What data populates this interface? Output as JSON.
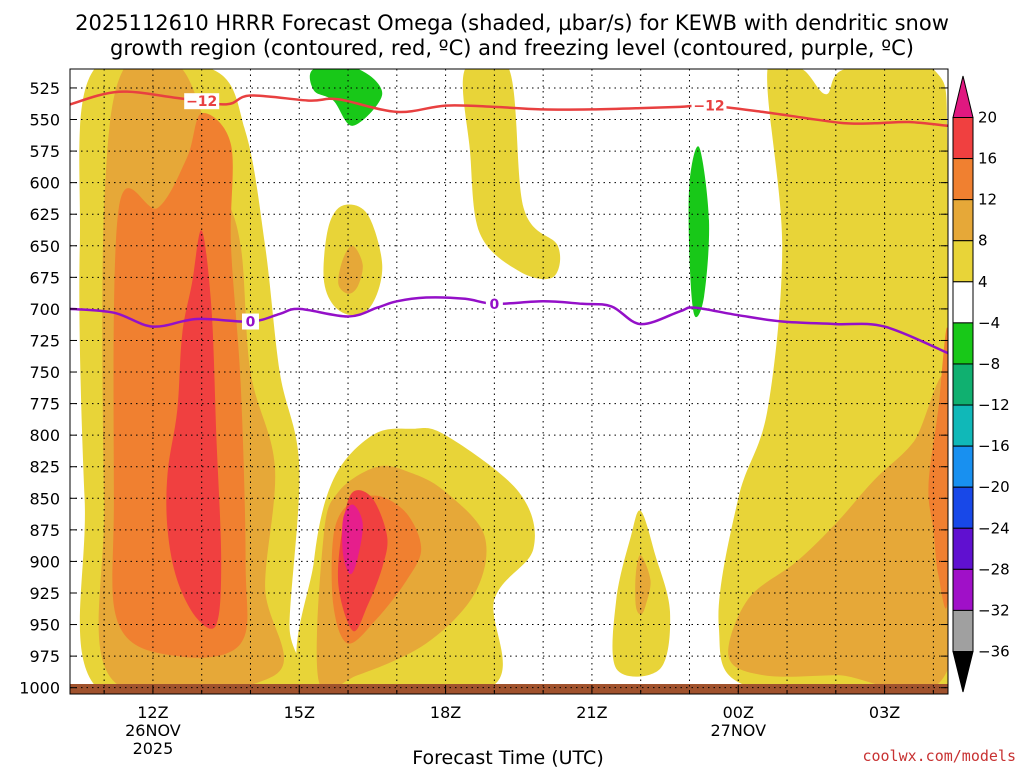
{
  "chart_data": {
    "type": "heatmap",
    "title_line1": "2025112610 HRRR Forecast Omega (shaded, µbar/s) for KEWB with dendritic snow",
    "title_line2": "growth region (contoured, red, ºC) and freezing level (contoured, purple, ºC)",
    "xlabel": "Forecast Time (UTC)",
    "credit": "coolwx.com/models",
    "x_range_hours": [
      10.3,
      28.3
    ],
    "y_range_mb": [
      1005,
      510
    ],
    "y_ticks": [
      {
        "label": "525",
        "p": 525
      },
      {
        "label": "550",
        "p": 550
      },
      {
        "label": "575",
        "p": 575
      },
      {
        "label": "600",
        "p": 600
      },
      {
        "label": "625",
        "p": 625
      },
      {
        "label": "650",
        "p": 650
      },
      {
        "label": "675",
        "p": 675
      },
      {
        "label": "700",
        "p": 700
      },
      {
        "label": "725",
        "p": 725
      },
      {
        "label": "750",
        "p": 750
      },
      {
        "label": "775",
        "p": 775
      },
      {
        "label": "800",
        "p": 800
      },
      {
        "label": "825",
        "p": 825
      },
      {
        "label": "850",
        "p": 850
      },
      {
        "label": "875",
        "p": 875
      },
      {
        "label": "900",
        "p": 900
      },
      {
        "label": "925",
        "p": 925
      },
      {
        "label": "950",
        "p": 950
      },
      {
        "label": "975",
        "p": 975
      },
      {
        "label": "1000",
        "p": 1000
      }
    ],
    "x_ticks": [
      {
        "label": "12Z",
        "h": 12,
        "sub1": "26NOV",
        "sub2": "2025"
      },
      {
        "label": "15Z",
        "h": 15,
        "sub1": "",
        "sub2": ""
      },
      {
        "label": "18Z",
        "h": 18,
        "sub1": "",
        "sub2": ""
      },
      {
        "label": "21Z",
        "h": 21,
        "sub1": "",
        "sub2": ""
      },
      {
        "label": "00Z",
        "h": 24,
        "sub1": "27NOV",
        "sub2": ""
      },
      {
        "label": "03Z",
        "h": 27,
        "sub1": "",
        "sub2": ""
      }
    ],
    "colorbar": {
      "labels": [
        "20",
        "16",
        "12",
        "8",
        "4",
        "−4",
        "−8",
        "−12",
        "−16",
        "−20",
        "−24",
        "−28",
        "−32",
        "−36"
      ],
      "colors": [
        "#f04040",
        "#f08030",
        "#e6a838",
        "#e8d438",
        "#ffffff",
        "#18c818",
        "#10b070",
        "#10b8b8",
        "#1890f0",
        "#1848e8",
        "#6010d0",
        "#a010c8",
        "#a0a0a0"
      ],
      "top_color": "#e01880",
      "bottom_color": "#000000"
    },
    "shading_colors": {
      "omega_4_8": "#e8d438",
      "omega_8_12": "#e6a838",
      "omega_12_16": "#f08030",
      "omega_16_20": "#f04040",
      "omega_gt_20": "#e61e8c",
      "omega_m4_m8": "#18c818",
      "ground": "#a0522d"
    },
    "dgz_contour": {
      "name": "-12°C (dendritic growth zone)",
      "label": "−12",
      "color": "#e84040",
      "label_hours": [
        13.0,
        23.4
      ],
      "points_hours_mb": [
        [
          10.3,
          538
        ],
        [
          11.3,
          528
        ],
        [
          12.5,
          533
        ],
        [
          13.5,
          538
        ],
        [
          14.0,
          531
        ],
        [
          15.2,
          535
        ],
        [
          15.8,
          534
        ],
        [
          17.0,
          544
        ],
        [
          18.0,
          539
        ],
        [
          19.0,
          540
        ],
        [
          20.0,
          542
        ],
        [
          21.0,
          542
        ],
        [
          22.0,
          541
        ],
        [
          22.8,
          540
        ],
        [
          23.4,
          539
        ],
        [
          24.5,
          544
        ],
        [
          25.4,
          549
        ],
        [
          26.2,
          553
        ],
        [
          26.8,
          553
        ],
        [
          27.5,
          552
        ],
        [
          28.3,
          555
        ]
      ]
    },
    "freezing_contour": {
      "name": "0°C (freezing level)",
      "label": "0",
      "color": "#9410c8",
      "label_hours": [
        14.0,
        19.0
      ],
      "points_hours_mb": [
        [
          10.3,
          700
        ],
        [
          11.2,
          703
        ],
        [
          12.0,
          714
        ],
        [
          12.9,
          708
        ],
        [
          14.0,
          710
        ],
        [
          14.6,
          704
        ],
        [
          15.0,
          700
        ],
        [
          16.0,
          706
        ],
        [
          16.6,
          699
        ],
        [
          17.0,
          694
        ],
        [
          17.6,
          691
        ],
        [
          18.4,
          692
        ],
        [
          19.0,
          696
        ],
        [
          20.0,
          694
        ],
        [
          20.8,
          696
        ],
        [
          21.4,
          698
        ],
        [
          22.0,
          712
        ],
        [
          22.8,
          702
        ],
        [
          23.1,
          699
        ],
        [
          24.0,
          705
        ],
        [
          24.9,
          710
        ],
        [
          26.0,
          712
        ],
        [
          27.0,
          714
        ],
        [
          28.3,
          735
        ]
      ]
    },
    "omega_regions": [
      {
        "level": "4-8",
        "color": "#e8d438",
        "poly": [
          [
            10.9,
            1002
          ],
          [
            10.6,
            850
          ],
          [
            10.5,
            650
          ],
          [
            10.8,
            510
          ],
          [
            13.2,
            510
          ],
          [
            13.9,
            560
          ],
          [
            14.3,
            650
          ],
          [
            14.6,
            750
          ],
          [
            15.0,
            825
          ],
          [
            14.8,
            950
          ],
          [
            14.9,
            1002
          ]
        ]
      },
      {
        "level": "4-8",
        "color": "#e8d438",
        "poly": [
          [
            15.2,
            1000
          ],
          [
            15.3,
            900
          ],
          [
            15.7,
            835
          ],
          [
            16.5,
            800
          ],
          [
            17.3,
            795
          ],
          [
            18.0,
            800
          ],
          [
            19.5,
            845
          ],
          [
            19.8,
            890
          ],
          [
            19.0,
            930
          ],
          [
            18.9,
            1000
          ]
        ]
      },
      {
        "level": "4-8",
        "color": "#e8d438",
        "poly": [
          [
            18.4,
            510
          ],
          [
            19.3,
            510
          ],
          [
            19.6,
            620
          ],
          [
            20.3,
            650
          ],
          [
            20.2,
            675
          ],
          [
            19.5,
            670
          ],
          [
            18.7,
            640
          ],
          [
            18.5,
            575
          ]
        ]
      },
      {
        "level": "4-8",
        "color": "#e8d438",
        "poly": [
          [
            15.5,
            675
          ],
          [
            15.6,
            635
          ],
          [
            15.9,
            618
          ],
          [
            16.4,
            625
          ],
          [
            16.7,
            665
          ],
          [
            16.5,
            696
          ],
          [
            16.1,
            705
          ],
          [
            15.7,
            697
          ]
        ]
      },
      {
        "level": "4-8",
        "color": "#e8d438",
        "poly": [
          [
            21.5,
            985
          ],
          [
            21.5,
            930
          ],
          [
            21.8,
            880
          ],
          [
            22.0,
            860
          ],
          [
            22.3,
            895
          ],
          [
            22.6,
            940
          ],
          [
            22.4,
            985
          ]
        ]
      },
      {
        "level": "4-8",
        "color": "#e8d438",
        "poly": [
          [
            24.3,
            1000
          ],
          [
            23.6,
            950
          ],
          [
            24.0,
            850
          ],
          [
            24.6,
            780
          ],
          [
            24.9,
            650
          ],
          [
            24.6,
            510
          ],
          [
            25.3,
            510
          ],
          [
            25.8,
            530
          ],
          [
            26.2,
            510
          ],
          [
            28.0,
            510
          ],
          [
            28.3,
            600
          ],
          [
            28.3,
            1000
          ]
        ]
      },
      {
        "level": "8-12",
        "color": "#e6a838",
        "poly": [
          [
            11.2,
            995
          ],
          [
            11.0,
            850
          ],
          [
            11.0,
            620
          ],
          [
            11.4,
            510
          ],
          [
            12.6,
            510
          ],
          [
            13.4,
            600
          ],
          [
            13.8,
            650
          ],
          [
            14.0,
            750
          ],
          [
            14.5,
            825
          ],
          [
            14.3,
            920
          ],
          [
            14.5,
            990
          ]
        ]
      },
      {
        "level": "8-12",
        "color": "#e6a838",
        "poly": [
          [
            15.4,
            995
          ],
          [
            15.5,
            880
          ],
          [
            15.8,
            845
          ],
          [
            16.6,
            825
          ],
          [
            17.3,
            830
          ],
          [
            18.0,
            845
          ],
          [
            18.8,
            880
          ],
          [
            18.6,
            925
          ],
          [
            17.6,
            965
          ],
          [
            16.2,
            990
          ]
        ]
      },
      {
        "level": "8-12",
        "color": "#e6a838",
        "poly": [
          [
            23.8,
            975
          ],
          [
            24.2,
            930
          ],
          [
            25.2,
            900
          ],
          [
            26.0,
            870
          ],
          [
            26.8,
            835
          ],
          [
            27.6,
            805
          ],
          [
            28.3,
            760
          ],
          [
            28.3,
            985
          ],
          [
            26.0,
            990
          ],
          [
            24.5,
            990
          ]
        ]
      },
      {
        "level": "8-12",
        "color": "#e6a838",
        "poly": [
          [
            15.8,
            680
          ],
          [
            15.9,
            660
          ],
          [
            16.1,
            650
          ],
          [
            16.3,
            665
          ],
          [
            16.2,
            682
          ],
          [
            16.0,
            688
          ]
        ]
      },
      {
        "level": "8-12",
        "color": "#e6a838",
        "poly": [
          [
            21.9,
            935
          ],
          [
            21.9,
            910
          ],
          [
            22.0,
            895
          ],
          [
            22.2,
            915
          ],
          [
            22.1,
            935
          ],
          [
            22.0,
            942
          ]
        ]
      },
      {
        "level": "12-16",
        "color": "#f08030",
        "poly": [
          [
            11.3,
            950
          ],
          [
            11.2,
            850
          ],
          [
            11.3,
            620
          ],
          [
            12.1,
            620
          ],
          [
            12.7,
            580
          ],
          [
            13.0,
            545
          ],
          [
            13.6,
            570
          ],
          [
            13.6,
            650
          ],
          [
            13.8,
            760
          ],
          [
            13.9,
            900
          ],
          [
            13.8,
            965
          ],
          [
            12.5,
            975
          ]
        ]
      },
      {
        "level": "12-16",
        "color": "#f08030",
        "poly": [
          [
            15.7,
            935
          ],
          [
            15.7,
            880
          ],
          [
            16.0,
            855
          ],
          [
            16.6,
            848
          ],
          [
            17.2,
            862
          ],
          [
            17.5,
            890
          ],
          [
            17.2,
            915
          ],
          [
            16.6,
            945
          ],
          [
            16.0,
            965
          ]
        ]
      },
      {
        "level": "12-16",
        "color": "#f08030",
        "poly": [
          [
            28.0,
            875
          ],
          [
            27.9,
            840
          ],
          [
            28.1,
            780
          ],
          [
            28.3,
            720
          ],
          [
            28.3,
            925
          ],
          [
            28.1,
            910
          ]
        ]
      },
      {
        "level": "16-20",
        "color": "#f04040",
        "poly": [
          [
            12.3,
            875
          ],
          [
            12.3,
            830
          ],
          [
            12.5,
            780
          ],
          [
            12.6,
            720
          ],
          [
            12.8,
            680
          ],
          [
            13.0,
            638
          ],
          [
            13.2,
            700
          ],
          [
            13.3,
            800
          ],
          [
            13.4,
            900
          ],
          [
            13.3,
            950
          ],
          [
            12.9,
            945
          ],
          [
            12.5,
            915
          ]
        ]
      },
      {
        "level": "16-20",
        "color": "#f04040",
        "poly": [
          [
            15.8,
            918
          ],
          [
            15.9,
            870
          ],
          [
            16.1,
            845
          ],
          [
            16.5,
            850
          ],
          [
            16.8,
            880
          ],
          [
            16.7,
            905
          ],
          [
            16.4,
            935
          ],
          [
            16.1,
            955
          ]
        ]
      },
      {
        "level": ">20",
        "color": "#e61e8c",
        "poly": [
          [
            15.9,
            895
          ],
          [
            15.9,
            866
          ],
          [
            16.1,
            855
          ],
          [
            16.3,
            870
          ],
          [
            16.2,
            897
          ],
          [
            16.05,
            910
          ]
        ]
      },
      {
        "level": "-4 to -8",
        "color": "#18c818",
        "poly": [
          [
            15.3,
            510
          ],
          [
            16.2,
            510
          ],
          [
            16.7,
            530
          ],
          [
            16.1,
            555
          ],
          [
            15.7,
            535
          ],
          [
            15.3,
            527
          ]
        ]
      },
      {
        "level": "-4 to -8",
        "color": "#18c818",
        "poly": [
          [
            23.2,
            572
          ],
          [
            23.4,
            630
          ],
          [
            23.3,
            690
          ],
          [
            23.1,
            705
          ],
          [
            23.0,
            660
          ],
          [
            23.0,
            600
          ]
        ]
      }
    ]
  }
}
